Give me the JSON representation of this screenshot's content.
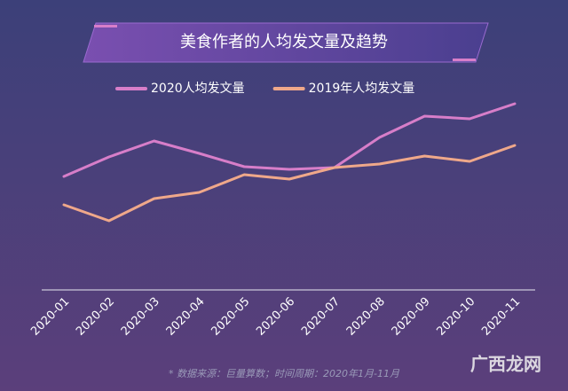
{
  "chart_data": {
    "type": "line",
    "title": "美食作者的人均发文量及趋势",
    "categories": [
      "2020-01",
      "2020-02",
      "2020-03",
      "2020-04",
      "2020-05",
      "2020-06",
      "2020-07",
      "2020-08",
      "2020-09",
      "2020-10",
      "2020-11"
    ],
    "series": [
      {
        "name": "2020人均发文量",
        "color": "#d77ec9",
        "values": [
          128,
          150,
          168,
          154,
          139,
          136,
          138,
          172,
          196,
          193,
          210
        ]
      },
      {
        "name": "2019年人均发文量",
        "color": "#efa88a",
        "values": [
          96,
          78,
          103,
          110,
          130,
          125,
          138,
          142,
          151,
          145,
          163
        ]
      }
    ],
    "ylim": [
      0,
      240
    ],
    "note": "* 数据来源：巨量算数；时间周期：2020年1月-11月",
    "watermark": "广西龙网"
  }
}
